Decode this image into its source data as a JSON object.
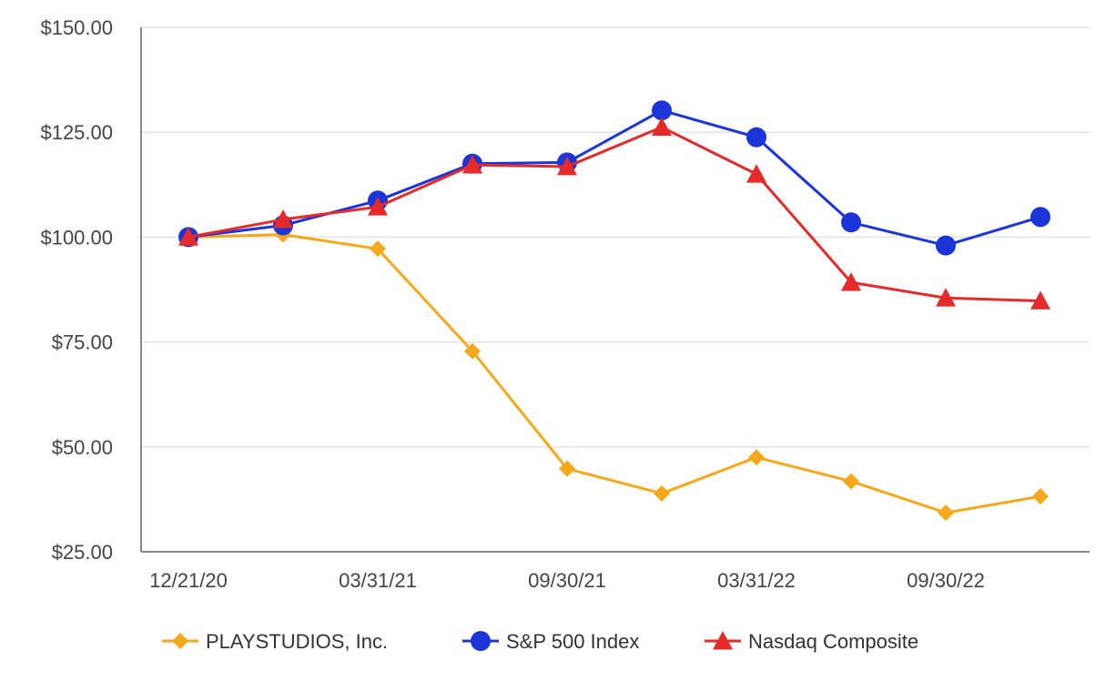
{
  "chart_data": {
    "type": "line",
    "x": [
      "12/21/20",
      "",
      "03/31/21",
      "",
      "09/30/21",
      "",
      "03/31/22",
      "",
      "09/30/22",
      ""
    ],
    "x_tick_labels": [
      "12/21/20",
      "03/31/21",
      "09/30/21",
      "03/31/22",
      "09/30/22"
    ],
    "y_tick_labels": [
      "$150.00",
      "$125.00",
      "$100.00",
      "$75.00",
      "$50.00",
      "$25.00"
    ],
    "ylim": [
      25,
      150
    ],
    "grid": true,
    "legend_position": "bottom",
    "series": [
      {
        "name": "PLAYSTUDIOS, Inc.",
        "color": "#F5A81C",
        "marker": "diamond",
        "values": [
          100.0,
          100.6,
          97.2,
          72.8,
          44.8,
          38.9,
          47.5,
          41.8,
          34.3,
          38.2
        ]
      },
      {
        "name": "S&P 500 Index",
        "color": "#1B35D9",
        "marker": "circle",
        "values": [
          100.0,
          102.8,
          108.7,
          117.5,
          117.8,
          130.2,
          123.8,
          103.5,
          98.0,
          104.8
        ]
      },
      {
        "name": "Nasdaq Composite",
        "color": "#E52A2A",
        "marker": "triangle",
        "values": [
          100.0,
          104.2,
          107.2,
          117.2,
          116.8,
          126.2,
          115.0,
          89.2,
          85.5,
          84.8
        ]
      }
    ]
  }
}
